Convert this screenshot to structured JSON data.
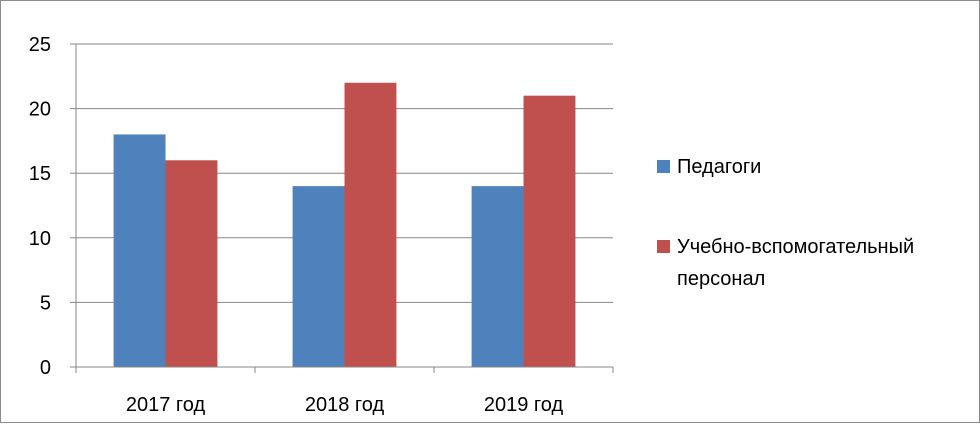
{
  "chart_data": {
    "type": "bar",
    "categories": [
      "2017 год",
      "2018 год",
      "2019 год"
    ],
    "series": [
      {
        "name": "Педагоги",
        "values": [
          18,
          14,
          14
        ],
        "color": "#4f81bd"
      },
      {
        "name": "Учебно-вспомогательный персонал",
        "name_lines": [
          "Учебно-вспомогательный",
          "персонал"
        ],
        "values": [
          16,
          22,
          21
        ],
        "color": "#c0504d"
      }
    ],
    "ylim": [
      0,
      25
    ],
    "yticks": [
      0,
      5,
      10,
      15,
      20,
      25
    ],
    "grid": true,
    "legend_position": "right",
    "title": "",
    "xlabel": "",
    "ylabel": ""
  }
}
